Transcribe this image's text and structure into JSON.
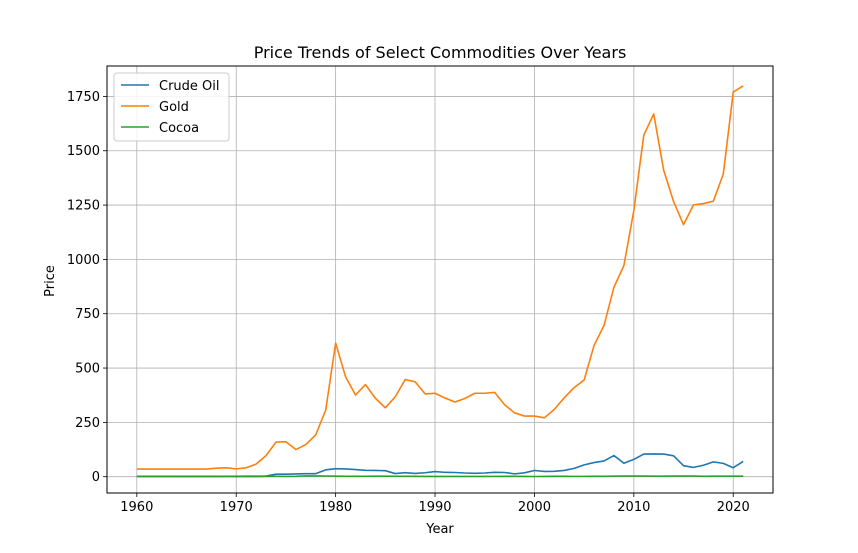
{
  "chart_data": {
    "type": "line",
    "title": "Price Trends of Select Commodities Over Years",
    "xlabel": "Year",
    "ylabel": "Price",
    "xlim": [
      1957,
      2024
    ],
    "ylim": [
      -75,
      1890
    ],
    "xticks": [
      1960,
      1970,
      1980,
      1990,
      2000,
      2010,
      2020
    ],
    "yticks": [
      0,
      250,
      500,
      750,
      1000,
      1250,
      1500,
      1750
    ],
    "grid": true,
    "legend": "top-left",
    "x": [
      1960,
      1961,
      1962,
      1963,
      1964,
      1965,
      1966,
      1967,
      1968,
      1969,
      1970,
      1971,
      1972,
      1973,
      1974,
      1975,
      1976,
      1977,
      1978,
      1979,
      1980,
      1981,
      1982,
      1983,
      1984,
      1985,
      1986,
      1987,
      1988,
      1989,
      1990,
      1991,
      1992,
      1993,
      1994,
      1995,
      1996,
      1997,
      1998,
      1999,
      2000,
      2001,
      2002,
      2003,
      2004,
      2005,
      2006,
      2007,
      2008,
      2009,
      2010,
      2011,
      2012,
      2013,
      2014,
      2015,
      2016,
      2017,
      2018,
      2019,
      2020,
      2021
    ],
    "series": [
      {
        "name": "Crude Oil",
        "color": "#1f77b4",
        "values": [
          1.9,
          1.9,
          1.9,
          1.9,
          1.9,
          1.9,
          1.9,
          1.9,
          1.9,
          1.9,
          1.8,
          2.2,
          2.5,
          3.3,
          11.6,
          11.5,
          12.8,
          13.9,
          14.0,
          31.6,
          36.8,
          35.9,
          32.9,
          29.6,
          28.8,
          27.6,
          14.4,
          18.4,
          15.0,
          18.2,
          23.7,
          20.0,
          19.3,
          17.0,
          15.8,
          17.0,
          20.4,
          19.3,
          13.1,
          18.0,
          28.5,
          24.4,
          25.0,
          28.8,
          38.3,
          54.5,
          65.1,
          72.4,
          97.3,
          61.7,
          79.5,
          104.0,
          105.0,
          104.1,
          96.2,
          50.8,
          42.8,
          52.8,
          68.3,
          61.4,
          41.3,
          70.4
        ]
      },
      {
        "name": "Gold",
        "color": "#ff7f0e",
        "values": [
          35,
          35,
          35,
          35,
          35,
          35,
          35,
          35,
          39,
          41,
          36,
          41,
          58,
          97,
          159,
          161,
          125,
          148,
          193,
          306,
          615,
          460,
          376,
          424,
          361,
          317,
          368,
          447,
          437,
          381,
          384,
          362,
          344,
          360,
          384,
          384,
          388,
          331,
          294,
          279,
          279,
          271,
          310,
          363,
          410,
          445,
          604,
          696,
          872,
          972,
          1225,
          1572,
          1669,
          1411,
          1266,
          1160,
          1251,
          1257,
          1268,
          1393,
          1770,
          1799
        ]
      },
      {
        "name": "Cocoa",
        "color": "#2ca02c",
        "values": [
          0.6,
          0.5,
          0.5,
          0.6,
          0.5,
          0.4,
          0.5,
          0.6,
          0.7,
          0.9,
          0.7,
          0.6,
          0.6,
          1.1,
          1.6,
          1.3,
          2.0,
          3.8,
          3.4,
          3.3,
          2.6,
          2.1,
          1.7,
          2.1,
          2.4,
          2.3,
          2.1,
          2.0,
          1.6,
          1.2,
          1.3,
          1.2,
          1.1,
          1.1,
          1.4,
          1.4,
          1.5,
          1.6,
          1.7,
          1.1,
          0.9,
          1.1,
          1.8,
          1.8,
          1.5,
          1.5,
          1.6,
          2.0,
          2.6,
          2.9,
          3.1,
          3.0,
          2.4,
          2.4,
          3.1,
          3.1,
          2.9,
          2.0,
          2.3,
          2.3,
          2.4,
          2.4
        ]
      }
    ]
  }
}
